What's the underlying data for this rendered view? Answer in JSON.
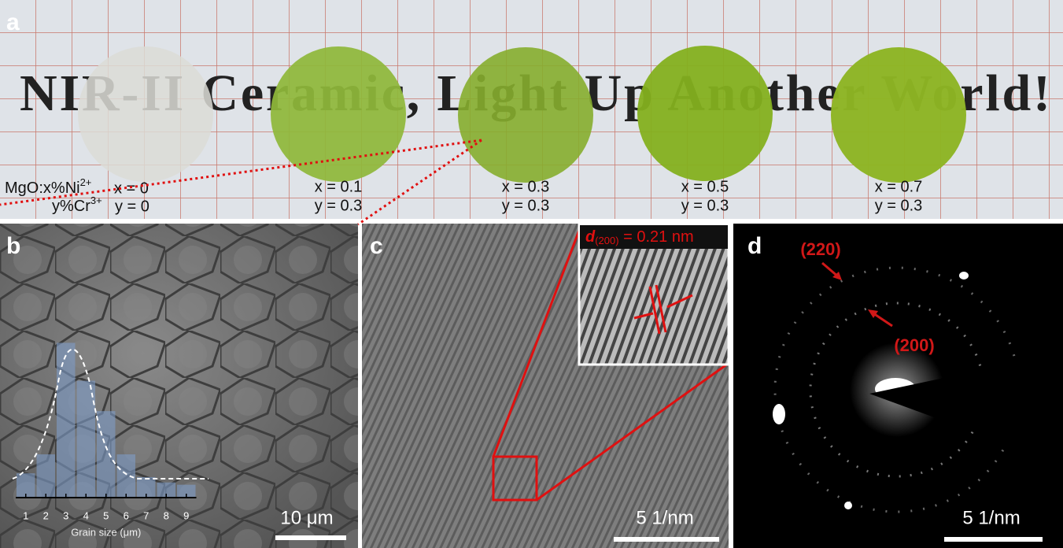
{
  "panel_labels": [
    "a",
    "b",
    "c",
    "d"
  ],
  "panel_a": {
    "background_text": "NIR-II Ceramic, Light Up Another World!",
    "composition": {
      "host": "MgO:",
      "ni": "x%Ni",
      "ni_charge": "2+",
      "cr": "y%Cr",
      "cr_charge": "3+"
    },
    "samples": [
      {
        "x": "x = 0",
        "y": "y = 0"
      },
      {
        "x": "x = 0.1",
        "y": "y = 0.3"
      },
      {
        "x": "x = 0.3",
        "y": "y = 0.3"
      },
      {
        "x": "x = 0.5",
        "y": "y = 0.3"
      },
      {
        "x": "x = 0.7",
        "y": "y = 0.3"
      }
    ]
  },
  "panel_b": {
    "scale_bar": "10 μm"
  },
  "chart_data": {
    "type": "bar",
    "xlabel": "Grain size (μm)",
    "categories": [
      "1",
      "2",
      "3",
      "4",
      "5",
      "6",
      "7",
      "8",
      "9"
    ],
    "values": [
      32,
      57,
      204,
      154,
      114,
      57,
      27,
      20,
      17
    ],
    "ylim": [
      0,
      220
    ],
    "color": "#7f9cc8"
  },
  "panel_c": {
    "spacing_symbol": "d",
    "spacing_index": "(200)",
    "spacing_value": " = 0.21 nm",
    "scale_bar": "5 1/nm"
  },
  "panel_d": {
    "ring_outer": "(220)",
    "ring_inner": "(200)",
    "scale_bar": "5 1/nm"
  }
}
